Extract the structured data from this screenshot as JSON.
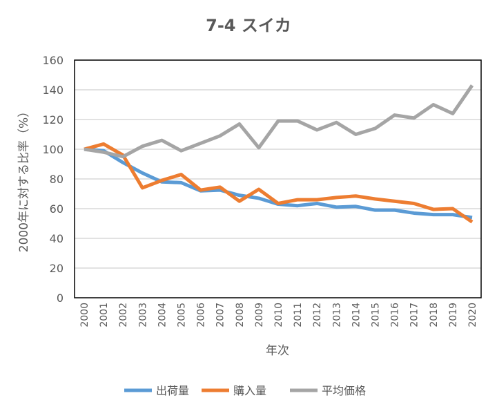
{
  "chart_data": {
    "type": "line",
    "title": "7-4 スイカ",
    "xlabel": "年次",
    "ylabel": "2000年に対する比率（%）",
    "ylim": [
      0,
      160
    ],
    "yticks": [
      0,
      20,
      40,
      60,
      80,
      100,
      120,
      140,
      160
    ],
    "grid": true,
    "legend": "bottom",
    "x": [
      "2000",
      "2001",
      "2002",
      "2003",
      "2004",
      "2005",
      "2006",
      "2007",
      "2008",
      "2009",
      "2010",
      "2011",
      "2012",
      "2013",
      "2014",
      "2015",
      "2016",
      "2017",
      "2018",
      "2019",
      "2020"
    ],
    "series": [
      {
        "name": "出荷量",
        "color": "#5b9bd5",
        "values": [
          100,
          99,
          91,
          84,
          78,
          77.5,
          72,
          72.5,
          69,
          67,
          63,
          62,
          63.5,
          61,
          61.5,
          59,
          59,
          57,
          56,
          56,
          54
        ]
      },
      {
        "name": "購入量",
        "color": "#ed7d31",
        "values": [
          100,
          103.5,
          96,
          74,
          79,
          83,
          72.5,
          74.5,
          65,
          73,
          63.5,
          66,
          66,
          67.5,
          68.5,
          66.5,
          65,
          63.5,
          59.5,
          60,
          51
        ]
      },
      {
        "name": "平均価格",
        "color": "#a5a5a5",
        "values": [
          100,
          98,
          95,
          102,
          106,
          99,
          104,
          109,
          117,
          101,
          119,
          119,
          113,
          118,
          110,
          114,
          123,
          121,
          130,
          124,
          143
        ]
      }
    ]
  }
}
